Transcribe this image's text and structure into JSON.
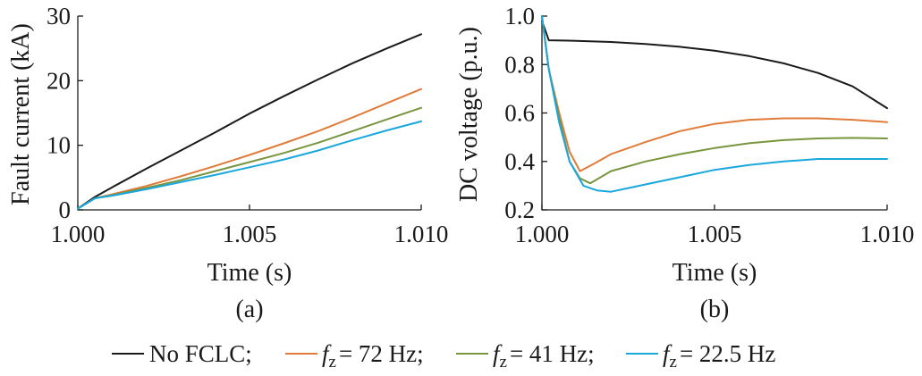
{
  "chart_data": [
    {
      "type": "line",
      "panel_label": "(a)",
      "xlabel": "Time (s)",
      "ylabel": "Fault current (kA)",
      "xlim": [
        1.0,
        1.01
      ],
      "ylim": [
        0,
        30
      ],
      "xticks": [
        "1.000",
        "1.005",
        "1.010"
      ],
      "yticks": [
        "0",
        "10",
        "20",
        "30"
      ],
      "grid": false,
      "series": [
        {
          "name": "No FCLC",
          "color": "#1a1a1a",
          "x": [
            1.0,
            1.0005,
            1.001,
            1.002,
            1.003,
            1.004,
            1.005,
            1.006,
            1.007,
            1.008,
            1.009,
            1.01
          ],
          "y": [
            0.2,
            2.0,
            3.5,
            6.4,
            9.2,
            12.0,
            14.9,
            17.6,
            20.2,
            22.7,
            25.0,
            27.2
          ]
        },
        {
          "name": "f_z = 72 Hz",
          "color": "#e07b39",
          "x": [
            1.0,
            1.0005,
            1.001,
            1.002,
            1.003,
            1.004,
            1.005,
            1.006,
            1.007,
            1.008,
            1.009,
            1.01
          ],
          "y": [
            0.2,
            1.8,
            2.4,
            3.7,
            5.2,
            6.8,
            8.5,
            10.3,
            12.2,
            14.3,
            16.5,
            18.7
          ]
        },
        {
          "name": "f_z = 41 Hz",
          "color": "#78953f",
          "x": [
            1.0,
            1.0005,
            1.001,
            1.002,
            1.003,
            1.004,
            1.005,
            1.006,
            1.007,
            1.008,
            1.009,
            1.01
          ],
          "y": [
            0.2,
            1.8,
            2.3,
            3.4,
            4.6,
            6.0,
            7.4,
            8.8,
            10.4,
            12.2,
            14.0,
            15.8
          ]
        },
        {
          "name": "f_z = 22.5 Hz",
          "color": "#1aa7dd",
          "x": [
            1.0,
            1.0005,
            1.001,
            1.002,
            1.003,
            1.004,
            1.005,
            1.006,
            1.007,
            1.008,
            1.009,
            1.01
          ],
          "y": [
            0.2,
            1.8,
            2.2,
            3.2,
            4.3,
            5.4,
            6.6,
            7.8,
            9.2,
            10.8,
            12.3,
            13.7
          ]
        }
      ]
    },
    {
      "type": "line",
      "panel_label": "(b)",
      "xlabel": "Time (s)",
      "ylabel": "DC voltage (p.u.)",
      "xlim": [
        1.0,
        1.01
      ],
      "ylim": [
        0.2,
        1.0
      ],
      "xticks": [
        "1.000",
        "1.005",
        "1.010"
      ],
      "yticks": [
        "0.2",
        "0.4",
        "0.6",
        "0.8",
        "1.0"
      ],
      "grid": false,
      "series": [
        {
          "name": "No FCLC",
          "color": "#1a1a1a",
          "x": [
            1.0,
            1.0002,
            1.001,
            1.002,
            1.003,
            1.004,
            1.005,
            1.006,
            1.007,
            1.008,
            1.009,
            1.01
          ],
          "y": [
            0.98,
            0.9,
            0.898,
            0.893,
            0.885,
            0.873,
            0.857,
            0.835,
            0.805,
            0.765,
            0.71,
            0.62
          ]
        },
        {
          "name": "f_z = 72 Hz",
          "color": "#e07b39",
          "x": [
            1.0,
            1.0002,
            1.0005,
            1.0008,
            1.0011,
            1.0015,
            1.002,
            1.003,
            1.004,
            1.005,
            1.006,
            1.007,
            1.008,
            1.009,
            1.01
          ],
          "y": [
            1.0,
            0.78,
            0.6,
            0.44,
            0.36,
            0.39,
            0.43,
            0.48,
            0.525,
            0.555,
            0.572,
            0.578,
            0.578,
            0.572,
            0.562
          ]
        },
        {
          "name": "f_z = 41 Hz",
          "color": "#78953f",
          "x": [
            1.0,
            1.0002,
            1.0005,
            1.0008,
            1.0011,
            1.0014,
            1.002,
            1.003,
            1.004,
            1.005,
            1.006,
            1.007,
            1.008,
            1.009,
            1.01
          ],
          "y": [
            1.0,
            0.78,
            0.58,
            0.4,
            0.33,
            0.31,
            0.36,
            0.4,
            0.43,
            0.455,
            0.475,
            0.488,
            0.495,
            0.497,
            0.495
          ]
        },
        {
          "name": "f_z = 22.5 Hz",
          "color": "#1aa7dd",
          "x": [
            1.0,
            1.0002,
            1.0005,
            1.0008,
            1.0012,
            1.0016,
            1.002,
            1.0025,
            1.003,
            1.004,
            1.005,
            1.006,
            1.007,
            1.008,
            1.009,
            1.01
          ],
          "y": [
            1.0,
            0.78,
            0.56,
            0.4,
            0.3,
            0.28,
            0.275,
            0.29,
            0.305,
            0.335,
            0.365,
            0.385,
            0.4,
            0.41,
            0.41,
            0.41
          ]
        }
      ]
    }
  ],
  "legend": {
    "placement": "bottom",
    "items": [
      {
        "color": "#1a1a1a",
        "text": "No FCLC;",
        "symbol": "",
        "subscript": "",
        "rest": ""
      },
      {
        "color": "#e07b39",
        "text": "",
        "symbol": "f",
        "subscript": "z",
        "rest": "= 72 Hz;"
      },
      {
        "color": "#78953f",
        "text": "",
        "symbol": "f",
        "subscript": "z",
        "rest": "= 41 Hz;"
      },
      {
        "color": "#1aa7dd",
        "text": "",
        "symbol": "f",
        "subscript": "z",
        "rest": "= 22.5 Hz"
      }
    ]
  }
}
